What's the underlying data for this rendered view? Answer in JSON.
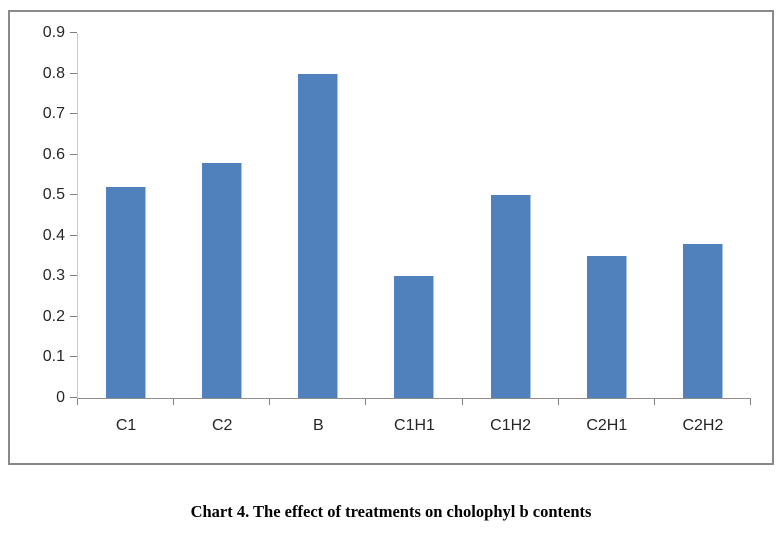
{
  "chart_data": {
    "type": "bar",
    "categories": [
      "C1",
      "C2",
      "B",
      "C1H1",
      "C1H2",
      "C2H1",
      "C2H2"
    ],
    "values": [
      0.52,
      0.58,
      0.8,
      0.3,
      0.5,
      0.35,
      0.38
    ],
    "title": "",
    "xlabel": "",
    "ylabel": "",
    "ylim": [
      0,
      0.9
    ],
    "ytick_step": 0.1,
    "ytick_labels": [
      "0",
      "0.1",
      "0.2",
      "0.3",
      "0.4",
      "0.5",
      "0.6",
      "0.7",
      "0.8",
      "0.9"
    ],
    "grid": false,
    "legend_position": "none",
    "bar_color": "#5081BD",
    "bar_edge_color": "#A8C1DE",
    "axis_y_color": "#C9C9C9",
    "axis_x_color": "#8E8E8E",
    "tick_color": "#7F7F7F",
    "frame_color": "#898989",
    "label_color": "#262626"
  },
  "caption": {
    "text": "Chart 4. The effect of treatments on cholophyl b contents"
  }
}
